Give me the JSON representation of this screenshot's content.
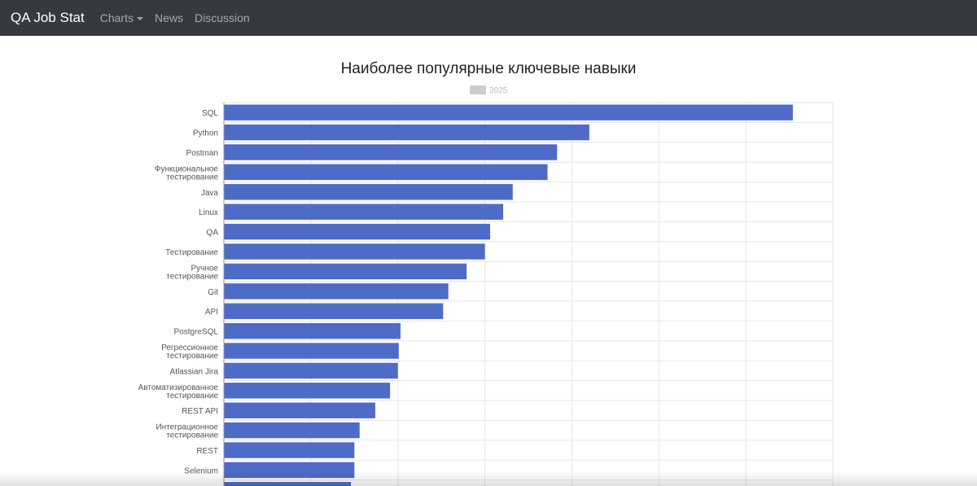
{
  "nav": {
    "brand": "QA Job Stat",
    "items": [
      "Charts",
      "News",
      "Discussion"
    ]
  },
  "chart_data": {
    "type": "bar",
    "orientation": "horizontal",
    "title": "Наиболее популярные ключевые навыки",
    "legend": [
      {
        "label": "2025",
        "color": "#cccccc"
      }
    ],
    "bar_color": "#4f6bc8",
    "categories": [
      "SQL",
      "Python",
      "Postman",
      "Функциональное тестирование",
      "Java",
      "Linux",
      "QA",
      "Тестирование",
      "Ручное тестирование",
      "Git",
      "API",
      "PostgreSQL",
      "Регрессионное тестирование",
      "Atlassian Jira",
      "Автоматизированное тестирование",
      "REST API",
      "Интеграционное тестирование",
      "REST",
      "Selenium",
      ""
    ],
    "values": [
      6.54,
      4.2,
      3.83,
      3.72,
      3.32,
      3.21,
      3.06,
      3.0,
      2.79,
      2.58,
      2.52,
      2.03,
      2.01,
      2.0,
      1.91,
      1.74,
      1.56,
      1.5,
      1.5,
      1.46
    ],
    "xlim": [
      0,
      7
    ],
    "grid": true,
    "xlabel": "",
    "ylabel": ""
  }
}
